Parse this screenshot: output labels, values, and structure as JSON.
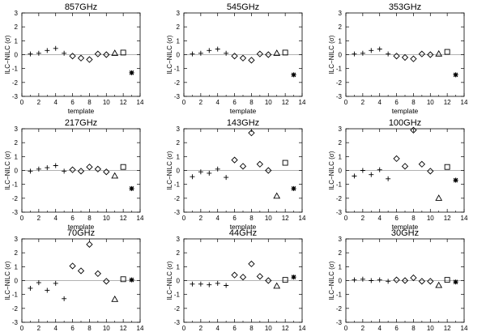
{
  "figure": {
    "colors": {
      "axis": "#000000",
      "background": "#ffffff",
      "zero_line": "#999999"
    }
  },
  "chart_data": [
    {
      "type": "scatter",
      "title": "857GHz",
      "xlabel": "template",
      "ylabel": "ILC−NILC (σ)",
      "xlim": [
        0,
        14
      ],
      "ylim": [
        -3,
        3
      ],
      "xticks": [
        "0",
        "2",
        "4",
        "6",
        "8",
        "10",
        "12",
        "14"
      ],
      "yticks": [
        "-3",
        "-2",
        "-1",
        "0",
        "1",
        "2",
        "3"
      ],
      "x": [
        1,
        2,
        3,
        4,
        5,
        6,
        7,
        8,
        9,
        10,
        11,
        12,
        13
      ],
      "y": [
        0.05,
        0.1,
        0.3,
        0.45,
        0.1,
        -0.1,
        -0.25,
        -0.35,
        0.05,
        0.0,
        0.1,
        0.15,
        -1.3
      ],
      "markers": [
        "plus",
        "plus",
        "plus",
        "plus",
        "plus",
        "diamond",
        "diamond",
        "diamond",
        "diamond",
        "diamond",
        "triangle",
        "square",
        "asterisk"
      ]
    },
    {
      "type": "scatter",
      "title": "545GHz",
      "xlabel": "template",
      "ylabel": "ILC−NILC (σ)",
      "xlim": [
        0,
        14
      ],
      "ylim": [
        -3,
        3
      ],
      "xticks": [
        "0",
        "2",
        "4",
        "6",
        "8",
        "10",
        "12",
        "14"
      ],
      "yticks": [
        "-3",
        "-2",
        "-1",
        "0",
        "1",
        "2",
        "3"
      ],
      "x": [
        1,
        2,
        3,
        4,
        5,
        6,
        7,
        8,
        9,
        10,
        11,
        12,
        13
      ],
      "y": [
        0.05,
        0.1,
        0.3,
        0.4,
        0.1,
        -0.1,
        -0.25,
        -0.4,
        0.05,
        0.0,
        0.1,
        0.15,
        -1.45
      ],
      "markers": [
        "plus",
        "plus",
        "plus",
        "plus",
        "plus",
        "diamond",
        "diamond",
        "diamond",
        "diamond",
        "diamond",
        "triangle",
        "square",
        "asterisk"
      ]
    },
    {
      "type": "scatter",
      "title": "353GHz",
      "xlabel": "template",
      "ylabel": "ILC−NILC (σ)",
      "xlim": [
        0,
        14
      ],
      "ylim": [
        -3,
        3
      ],
      "xticks": [
        "0",
        "2",
        "4",
        "6",
        "8",
        "10",
        "12",
        "14"
      ],
      "yticks": [
        "-3",
        "-2",
        "-1",
        "0",
        "1",
        "2",
        "3"
      ],
      "x": [
        1,
        2,
        3,
        4,
        5,
        6,
        7,
        8,
        9,
        10,
        11,
        12,
        13
      ],
      "y": [
        0.05,
        0.1,
        0.3,
        0.4,
        0.05,
        -0.1,
        -0.2,
        -0.3,
        0.05,
        0.0,
        0.05,
        0.2,
        -1.45
      ],
      "markers": [
        "plus",
        "plus",
        "plus",
        "plus",
        "plus",
        "diamond",
        "diamond",
        "diamond",
        "diamond",
        "diamond",
        "triangle",
        "square",
        "asterisk"
      ]
    },
    {
      "type": "scatter",
      "title": "217GHz",
      "xlabel": "template",
      "ylabel": "ILC−NILC (σ)",
      "xlim": [
        0,
        14
      ],
      "ylim": [
        -3,
        3
      ],
      "xticks": [
        "0",
        "2",
        "4",
        "6",
        "8",
        "10",
        "12",
        "14"
      ],
      "yticks": [
        "-3",
        "-2",
        "-1",
        "0",
        "1",
        "2",
        "3"
      ],
      "x": [
        1,
        2,
        3,
        4,
        5,
        6,
        7,
        8,
        9,
        10,
        11,
        12,
        13
      ],
      "y": [
        -0.05,
        0.1,
        0.2,
        0.35,
        -0.05,
        0.05,
        -0.05,
        0.25,
        0.1,
        -0.1,
        -0.4,
        0.25,
        -1.3
      ],
      "markers": [
        "plus",
        "plus",
        "plus",
        "plus",
        "plus",
        "diamond",
        "diamond",
        "diamond",
        "diamond",
        "diamond",
        "triangle",
        "square",
        "asterisk"
      ]
    },
    {
      "type": "scatter",
      "title": "143GHz",
      "xlabel": "template",
      "ylabel": "ILC−NILC (σ)",
      "xlim": [
        0,
        14
      ],
      "ylim": [
        -3,
        3
      ],
      "xticks": [
        "0",
        "2",
        "4",
        "6",
        "8",
        "10",
        "12",
        "14"
      ],
      "yticks": [
        "-3",
        "-2",
        "-1",
        "0",
        "1",
        "2",
        "3"
      ],
      "x": [
        1,
        2,
        3,
        4,
        5,
        6,
        7,
        8,
        9,
        10,
        11,
        12,
        13
      ],
      "y": [
        -0.45,
        -0.1,
        -0.2,
        0.1,
        -0.5,
        0.75,
        0.3,
        2.7,
        0.45,
        0.0,
        -1.85,
        0.55,
        -1.3
      ],
      "markers": [
        "plus",
        "plus",
        "plus",
        "plus",
        "plus",
        "diamond",
        "diamond",
        "diamond",
        "diamond",
        "diamond",
        "triangle",
        "square",
        "asterisk"
      ]
    },
    {
      "type": "scatter",
      "title": "100GHz",
      "xlabel": "template",
      "ylabel": "ILC−NILC (σ)",
      "xlim": [
        0,
        14
      ],
      "ylim": [
        -3,
        3
      ],
      "xticks": [
        "0",
        "2",
        "4",
        "6",
        "8",
        "10",
        "12",
        "14"
      ],
      "yticks": [
        "-3",
        "-2",
        "-1",
        "0",
        "1",
        "2",
        "3"
      ],
      "x": [
        1,
        2,
        3,
        4,
        5,
        6,
        7,
        8,
        9,
        10,
        11,
        12,
        13
      ],
      "y": [
        -0.4,
        0.0,
        -0.3,
        0.05,
        -0.6,
        0.85,
        0.3,
        2.9,
        0.45,
        -0.05,
        -2.0,
        0.25,
        -0.7
      ],
      "markers": [
        "plus",
        "plus",
        "plus",
        "plus",
        "plus",
        "diamond",
        "diamond",
        "diamond",
        "diamond",
        "diamond",
        "triangle",
        "square",
        "asterisk"
      ]
    },
    {
      "type": "scatter",
      "title": "70GHz",
      "xlabel": "template",
      "ylabel": "ILC−NILC (σ)",
      "xlim": [
        0,
        14
      ],
      "ylim": [
        -3,
        3
      ],
      "xticks": [
        "0",
        "2",
        "4",
        "6",
        "8",
        "10",
        "12",
        "14"
      ],
      "yticks": [
        "-3",
        "-2",
        "-1",
        "0",
        "1",
        "2",
        "3"
      ],
      "x": [
        1,
        2,
        3,
        4,
        5,
        6,
        7,
        8,
        9,
        10,
        11,
        12,
        13
      ],
      "y": [
        -0.55,
        -0.15,
        -0.7,
        -0.2,
        -1.3,
        1.05,
        0.7,
        2.6,
        0.5,
        -0.05,
        -1.35,
        0.1,
        0.05
      ],
      "markers": [
        "plus",
        "plus",
        "plus",
        "plus",
        "plus",
        "diamond",
        "diamond",
        "diamond",
        "diamond",
        "diamond",
        "triangle",
        "square",
        "asterisk"
      ]
    },
    {
      "type": "scatter",
      "title": "44GHz",
      "xlabel": "template",
      "ylabel": "ILC−NILC (σ)",
      "xlim": [
        0,
        14
      ],
      "ylim": [
        -3,
        3
      ],
      "xticks": [
        "0",
        "2",
        "4",
        "6",
        "8",
        "10",
        "12",
        "14"
      ],
      "yticks": [
        "-3",
        "-2",
        "-1",
        "0",
        "1",
        "2",
        "3"
      ],
      "x": [
        1,
        2,
        3,
        4,
        5,
        6,
        7,
        8,
        9,
        10,
        11,
        12,
        13
      ],
      "y": [
        -0.25,
        -0.25,
        -0.3,
        -0.2,
        -0.35,
        0.4,
        0.25,
        1.2,
        0.3,
        0.0,
        -0.4,
        0.05,
        0.25
      ],
      "markers": [
        "plus",
        "plus",
        "plus",
        "plus",
        "plus",
        "diamond",
        "diamond",
        "diamond",
        "diamond",
        "diamond",
        "triangle",
        "square",
        "asterisk"
      ]
    },
    {
      "type": "scatter",
      "title": "30GHz",
      "xlabel": "template",
      "ylabel": "ILC−NILC (σ)",
      "xlim": [
        0,
        14
      ],
      "ylim": [
        -3,
        3
      ],
      "xticks": [
        "0",
        "2",
        "4",
        "6",
        "8",
        "10",
        "12",
        "14"
      ],
      "yticks": [
        "-3",
        "-2",
        "-1",
        "0",
        "1",
        "2",
        "3"
      ],
      "x": [
        1,
        2,
        3,
        4,
        5,
        6,
        7,
        8,
        9,
        10,
        11,
        12,
        13
      ],
      "y": [
        0.05,
        0.1,
        0.0,
        0.05,
        -0.05,
        0.05,
        0.0,
        0.2,
        -0.05,
        -0.05,
        -0.35,
        0.05,
        -0.1
      ],
      "markers": [
        "plus",
        "plus",
        "plus",
        "plus",
        "plus",
        "diamond",
        "diamond",
        "diamond",
        "diamond",
        "diamond",
        "triangle",
        "square",
        "asterisk"
      ]
    }
  ]
}
